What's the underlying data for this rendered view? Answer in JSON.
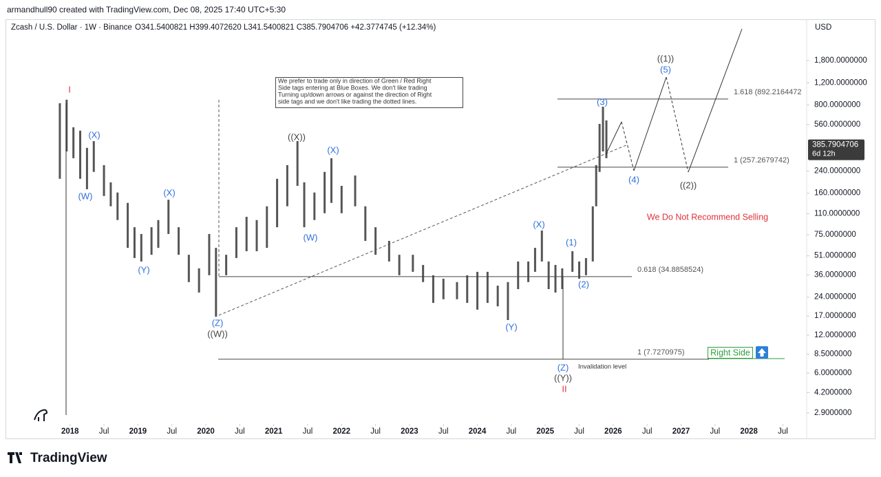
{
  "header": {
    "credit": "armandhull90 created with TradingView.com, Dec 08, 2025 17:40 UTC+5:30",
    "symbol": "Zcash / U.S. Dollar · 1W · Binance",
    "ohlc": "O341.5400821 H399.4072620 L341.5400821 C385.7904706 +42.3774745 (+12.34%)",
    "currency": "USD",
    "last_price": 385.7904706,
    "countdown": "6d 12h",
    "note": [
      "We prefer to trade only in direction of Green / Red Right",
      "Side tags entering at Blue Boxes. We don't like trading",
      "Turning up/down arrows or against the direction of Right",
      "side tags and we don't like trading the dotted lines."
    ],
    "warning": "We Do Not Recommend Selling",
    "right_side": "Right Side",
    "invalidation": "Invalidation level",
    "brand": "TradingView"
  },
  "chart_data": {
    "type": "ohlc",
    "log_scale": true,
    "color": "#555555",
    "x": [
      2017.85,
      2017.95,
      2018.05,
      2018.15,
      2018.25,
      2018.35,
      2018.5,
      2018.6,
      2018.7,
      2018.85,
      2018.95,
      2019.05,
      2019.2,
      2019.3,
      2019.45,
      2019.6,
      2019.75,
      2019.9,
      2020.05,
      2020.15,
      2020.3,
      2020.45,
      2020.6,
      2020.75,
      2020.9,
      2021.05,
      2021.2,
      2021.35,
      2021.45,
      2021.6,
      2021.75,
      2021.85,
      2022.0,
      2022.2,
      2022.35,
      2022.5,
      2022.7,
      2022.85,
      2023.05,
      2023.2,
      2023.35,
      2023.5,
      2023.7,
      2023.85,
      2024.0,
      2024.15,
      2024.3,
      2024.45,
      2024.6,
      2024.75,
      2024.85,
      2024.95,
      2025.05,
      2025.15,
      2025.25,
      2025.4,
      2025.5,
      2025.6,
      2025.7,
      2025.75,
      2025.8,
      2025.85,
      2025.9
    ],
    "high": [
      826,
      881,
      533,
      501,
      366,
      414,
      267,
      195,
      162,
      134,
      86,
      76,
      86,
      98,
      142,
      86,
      52,
      40.6,
      76,
      59,
      52,
      86,
      104,
      98,
      126,
      208,
      267,
      414,
      195,
      162,
      236,
      303,
      183,
      221,
      126,
      86,
      67,
      52,
      52,
      43.2,
      35.8,
      33.6,
      31.6,
      35.8,
      38.1,
      38.1,
      29.6,
      31.6,
      46,
      46,
      59,
      81,
      46,
      43.2,
      40.6,
      55.5,
      46,
      49,
      126,
      267,
      567,
      776,
      604
    ],
    "low": [
      208,
      343,
      303,
      208,
      172,
      236,
      152,
      126,
      98,
      59,
      49,
      46,
      52,
      59,
      76,
      52,
      31.6,
      26.1,
      35.8,
      16.8,
      35.8,
      49,
      55.5,
      55.5,
      59,
      86,
      126,
      183,
      86,
      98,
      111,
      134,
      111,
      126,
      67,
      52,
      46,
      35.8,
      38.1,
      31.6,
      21.6,
      23.1,
      23.1,
      21.6,
      19.1,
      21.6,
      20.3,
      15.8,
      27.8,
      31.6,
      38.1,
      46,
      27.8,
      26.1,
      27.8,
      38.1,
      33.6,
      35.8,
      46,
      126,
      236,
      343,
      303
    ],
    "xlim": [
      2017.07,
      2028.83
    ],
    "xticks": [
      2018,
      {
        "value": 2018.5,
        "label": "Jul"
      },
      2019,
      {
        "value": 2019.5,
        "label": "Jul"
      },
      2020,
      {
        "value": 2020.5,
        "label": "Jul"
      },
      2021,
      {
        "value": 2021.5,
        "label": "Jul"
      },
      2022,
      {
        "value": 2022.5,
        "label": "Jul"
      },
      2023,
      {
        "value": 2023.5,
        "label": "Jul"
      },
      2024,
      {
        "value": 2024.5,
        "label": "Jul"
      },
      2025,
      {
        "value": 2025.5,
        "label": "Jul"
      },
      2026,
      {
        "value": 2026.5,
        "label": "Jul"
      },
      2027,
      {
        "value": 2027.5,
        "label": "Jul"
      },
      2028,
      {
        "value": 2028.5,
        "label": "Jul"
      }
    ],
    "ylim": [
      2.4,
      3730
    ],
    "yticks": [
      {
        "value": 1800,
        "label": "1,800.0000000"
      },
      {
        "value": 1200,
        "label": "1,200.0000000"
      },
      {
        "value": 800,
        "label": "800.0000000"
      },
      {
        "value": 560,
        "label": "560.0000000"
      },
      {
        "value": 240,
        "label": "240.0000000"
      },
      {
        "value": 160,
        "label": "160.0000000"
      },
      {
        "value": 110,
        "label": "110.0000000"
      },
      {
        "value": 75,
        "label": "75.0000000"
      },
      {
        "value": 51,
        "label": "51.0000000"
      },
      {
        "value": 36,
        "label": "36.0000000"
      },
      {
        "value": 24,
        "label": "24.0000000"
      },
      {
        "value": 17,
        "label": "17.0000000"
      },
      {
        "value": 12,
        "label": "12.0000000"
      },
      {
        "value": 8.5,
        "label": "8.5000000"
      },
      {
        "value": 6,
        "label": "6.0000000"
      },
      {
        "value": 4.2,
        "label": "4.2000000"
      },
      {
        "value": 2.9,
        "label": "2.9000000"
      }
    ],
    "fib_levels": [
      {
        "value": 892.2164472,
        "label": "1.618 (892.2164472"
      },
      {
        "value": 257.2679742,
        "label": "1 (257.2679742)"
      },
      {
        "value": 34.8858524,
        "label": "0.618 (34.8858524)"
      },
      {
        "value": 7.7270975,
        "label": "1 (7.7270975)"
      }
    ],
    "wave_labels": [
      "I",
      "(X)",
      "(W)",
      "(Y)",
      "(X)",
      "(Z)",
      "((W))",
      "((X))",
      "(W)",
      "(X)",
      "(Y)",
      "(X)",
      "(1)",
      "(2)",
      "(3)",
      "(4)",
      "((1))",
      "(5)",
      "((2))",
      "(Z)",
      "((Y))",
      "II"
    ]
  }
}
